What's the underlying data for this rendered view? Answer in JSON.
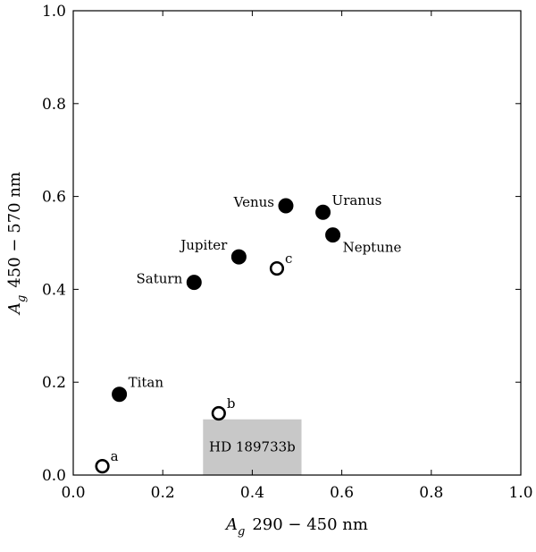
{
  "chart_data": {
    "type": "scatter",
    "title": "",
    "xlabel": {
      "symbol": "A",
      "sub": "g",
      "range": "290 − 450 nm"
    },
    "ylabel": {
      "symbol": "A",
      "sub": "g",
      "range": "450 − 570 nm"
    },
    "xlim": [
      0.0,
      1.0
    ],
    "ylim": [
      0.0,
      1.0
    ],
    "xticks": [
      "0.0",
      "0.2",
      "0.4",
      "0.6",
      "0.8",
      "1.0"
    ],
    "yticks": [
      "0.0",
      "0.2",
      "0.4",
      "0.6",
      "0.8",
      "1.0"
    ],
    "grid": false,
    "points": [
      {
        "label": "Venus",
        "x": 0.475,
        "y": 0.58,
        "filled": true,
        "label_pos": "left"
      },
      {
        "label": "Uranus",
        "x": 0.558,
        "y": 0.566,
        "filled": true,
        "label_pos": "right-up"
      },
      {
        "label": "Neptune",
        "x": 0.58,
        "y": 0.517,
        "filled": true,
        "label_pos": "right-down"
      },
      {
        "label": "Jupiter",
        "x": 0.37,
        "y": 0.47,
        "filled": true,
        "label_pos": "left-up"
      },
      {
        "label": "Saturn",
        "x": 0.27,
        "y": 0.415,
        "filled": true,
        "label_pos": "left"
      },
      {
        "label": "Titan",
        "x": 0.103,
        "y": 0.174,
        "filled": true,
        "label_pos": "right-up"
      },
      {
        "label": "c",
        "x": 0.455,
        "y": 0.445,
        "filled": false,
        "label_pos": "right-up"
      },
      {
        "label": "b",
        "x": 0.325,
        "y": 0.133,
        "filled": false,
        "label_pos": "right-up"
      },
      {
        "label": "a",
        "x": 0.065,
        "y": 0.019,
        "filled": false,
        "label_pos": "right-up"
      }
    ],
    "region": {
      "label": "HD 189733b",
      "x": [
        0.29,
        0.51
      ],
      "y": [
        0.0,
        0.12
      ],
      "color": "#c8c8c8"
    },
    "colors": {
      "marker": "#000000",
      "axis": "#000000"
    }
  }
}
